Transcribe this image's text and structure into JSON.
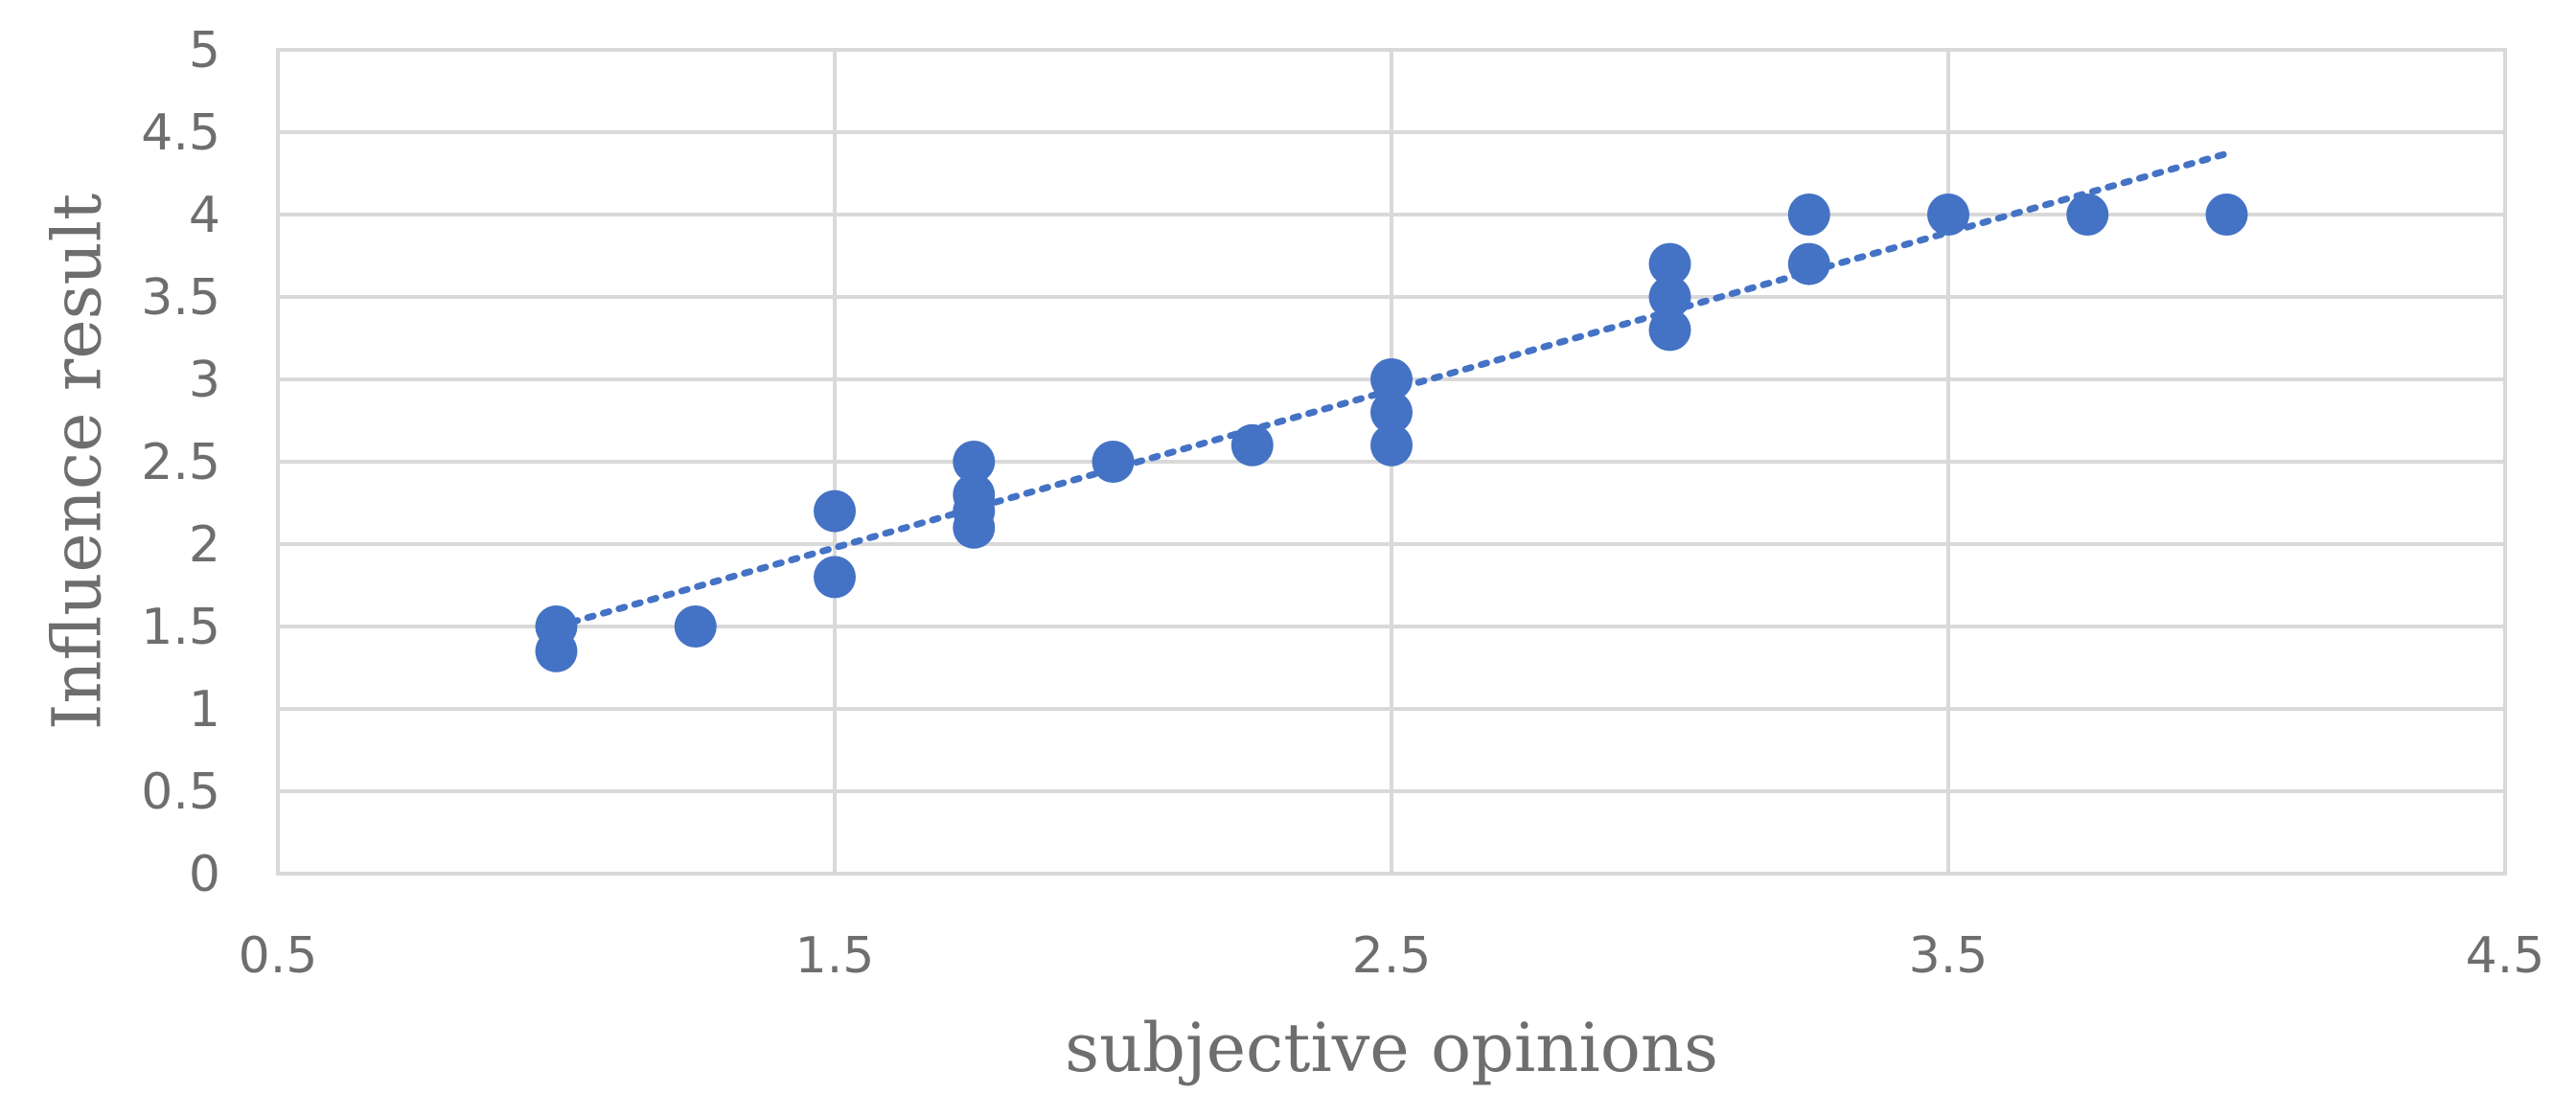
{
  "chart_data": {
    "type": "scatter",
    "title": "",
    "xlabel": "subjective opinions",
    "ylabel": "Influence result",
    "xlim": [
      0.5,
      4.5
    ],
    "ylim": [
      0,
      5
    ],
    "x_ticks": [
      "0.5",
      "1.5",
      "2.5",
      "3.5",
      "4.5"
    ],
    "y_ticks": [
      "0",
      "0.5",
      "1",
      "1.5",
      "2",
      "2.5",
      "3",
      "3.5",
      "4",
      "4.5",
      "5"
    ],
    "grid": true,
    "legend": "none",
    "colors": {
      "marker": "#4472c4",
      "trendline": "#4472c4",
      "grid": "#d9d9d9",
      "text": "#6e6e6e"
    },
    "series": [
      {
        "points": [
          {
            "x": 1.0,
            "y": 1.5
          },
          {
            "x": 1.0,
            "y": 1.35
          },
          {
            "x": 1.25,
            "y": 1.5
          },
          {
            "x": 1.5,
            "y": 2.2
          },
          {
            "x": 1.5,
            "y": 1.8
          },
          {
            "x": 1.75,
            "y": 2.5
          },
          {
            "x": 1.75,
            "y": 2.3
          },
          {
            "x": 1.75,
            "y": 2.2
          },
          {
            "x": 1.75,
            "y": 2.1
          },
          {
            "x": 2.0,
            "y": 2.5
          },
          {
            "x": 2.25,
            "y": 2.6
          },
          {
            "x": 2.5,
            "y": 3.0
          },
          {
            "x": 2.5,
            "y": 2.8
          },
          {
            "x": 2.5,
            "y": 2.6
          },
          {
            "x": 3.0,
            "y": 3.7
          },
          {
            "x": 3.0,
            "y": 3.5
          },
          {
            "x": 3.0,
            "y": 3.3
          },
          {
            "x": 3.25,
            "y": 4.0
          },
          {
            "x": 3.25,
            "y": 3.7
          },
          {
            "x": 3.5,
            "y": 4.0
          },
          {
            "x": 3.75,
            "y": 4.0
          },
          {
            "x": 4.0,
            "y": 4.0
          }
        ]
      }
    ],
    "trendline": {
      "type": "linear",
      "start": {
        "x": 1.0,
        "y": 1.5
      },
      "end": {
        "x": 4.0,
        "y": 4.37
      }
    }
  }
}
